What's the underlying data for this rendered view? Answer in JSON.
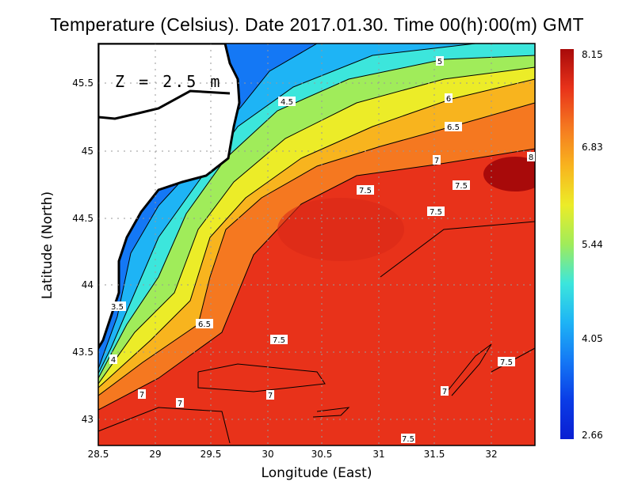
{
  "title": "Temperature (Celsius). Date 2017.01.30. Time 00(h):00(m) GMT",
  "depth_label": "Z = 2.5 m",
  "chart_data": {
    "type": "heatmap",
    "title": "Temperature (Celsius). Date 2017.01.30. Time 00(h):00(m) GMT",
    "xlabel": "Longitude (East)",
    "ylabel": "Latitude (North)",
    "xlim": [
      28.5,
      32.4
    ],
    "ylim": [
      42.82,
      45.8
    ],
    "x_ticks": [
      "28.5",
      "29",
      "29.5",
      "30",
      "30.5",
      "31",
      "31.5",
      "32"
    ],
    "y_ticks": [
      "45.5",
      "45",
      "44.5",
      "44",
      "43.5",
      "43"
    ],
    "grid": true,
    "colorbar": {
      "min": 2.66,
      "max": 8.15,
      "tick_labels": [
        "8.15",
        "6.83",
        "5.44",
        "4.05",
        "2.66"
      ]
    },
    "contour_levels": [
      3.5,
      4,
      4.5,
      5,
      5.5,
      6,
      6.5,
      7,
      7.5,
      8
    ],
    "contour_labels": [
      "5",
      "4.5",
      "6",
      "6.5",
      "7",
      "8",
      "7.5",
      "7.5",
      "7.5",
      "3.5",
      "6.5",
      "7.5",
      "4",
      "7",
      "7",
      "7",
      "7",
      "7.5"
    ]
  },
  "colors": {
    "c3": "#0a1ed2",
    "c35": "#0a3ce6",
    "c4": "#1478f5",
    "c45": "#1eb4f5",
    "c5": "#3ce6dc",
    "c55": "#a0ec5a",
    "c6": "#ecec28",
    "c65": "#f8b41e",
    "c7": "#f57820",
    "c75": "#e8321a",
    "c8": "#a80a0a"
  }
}
